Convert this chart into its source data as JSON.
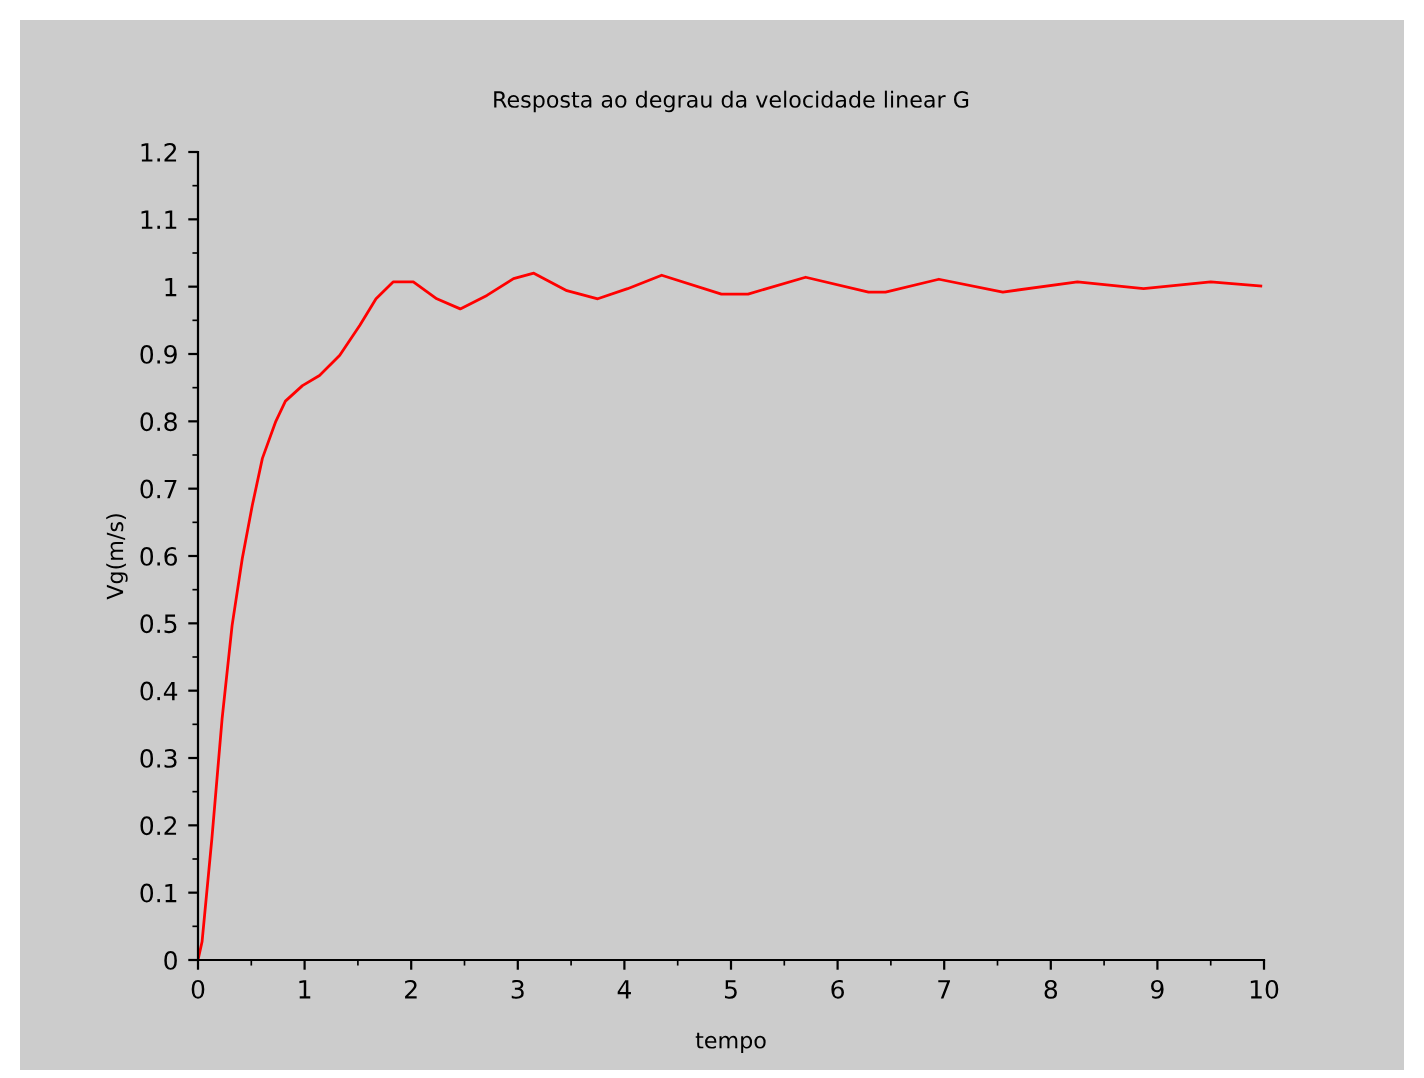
{
  "chart_data": {
    "type": "line",
    "title": "Resposta ao degrau da velocidade linear G",
    "xlabel": "tempo",
    "ylabel": "Vg(m/s)",
    "x": [
      0,
      0.038,
      0.13,
      0.226,
      0.32,
      0.415,
      0.509,
      0.604,
      0.73,
      0.82,
      0.98,
      1.14,
      1.33,
      1.52,
      1.67,
      1.83,
      2.02,
      2.24,
      2.46,
      2.71,
      2.96,
      3.15,
      3.46,
      3.75,
      4.03,
      4.35,
      4.91,
      5.16,
      5.7,
      6.29,
      6.45,
      6.95,
      7.55,
      8.25,
      8.87,
      9.5,
      9.97
    ],
    "series": [
      {
        "color": "#ff0000",
        "values": [
          0,
          0.027,
          0.18,
          0.358,
          0.497,
          0.596,
          0.675,
          0.745,
          0.8,
          0.83,
          0.853,
          0.868,
          0.898,
          0.943,
          0.982,
          1.007,
          1.007,
          0.982,
          0.967,
          0.987,
          1.012,
          1.02,
          0.994,
          0.982,
          0.997,
          1.017,
          0.989,
          0.989,
          1.014,
          0.992,
          0.992,
          1.011,
          0.992,
          1.007,
          0.997,
          1.007,
          1.001
        ]
      }
    ],
    "xlim": [
      0,
      10
    ],
    "xticks": [
      0,
      1,
      2,
      3,
      4,
      5,
      6,
      7,
      8,
      9,
      10
    ],
    "ylim": [
      0,
      1.2
    ],
    "yticks": [
      0,
      0.1,
      0.2,
      0.3,
      0.4,
      0.5,
      0.6,
      0.7,
      0.8,
      0.9,
      1,
      1.1,
      1.2
    ],
    "grid": false,
    "legend": false,
    "marker": "none",
    "line_style": "solid"
  }
}
